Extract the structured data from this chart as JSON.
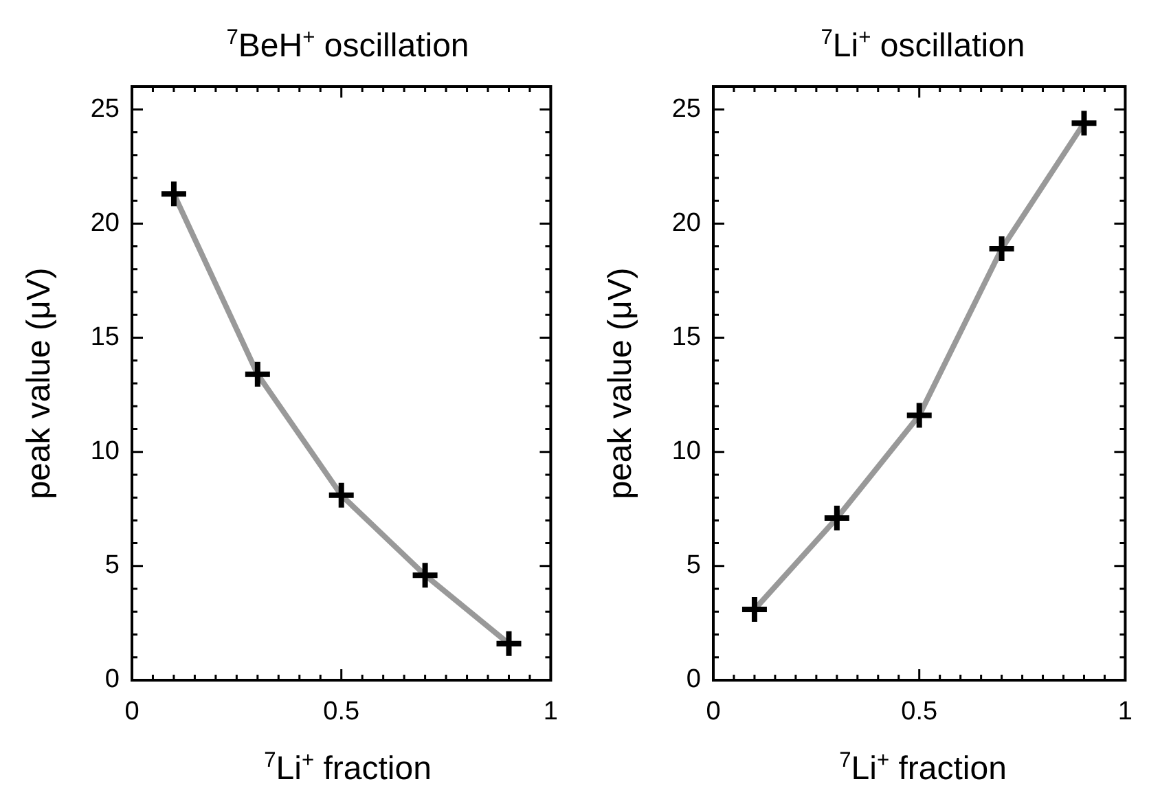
{
  "chart_data": [
    {
      "type": "line",
      "title": "$^{7}$BeH$^{+}$ oscillation",
      "xlabel": "$^{7}$Li$^{+}$ fraction",
      "ylabel": "peak value (μV)",
      "x": [
        0.1,
        0.3,
        0.5,
        0.7,
        0.9
      ],
      "series": [
        {
          "color": "#999999",
          "colors": [
            "#000000",
            "#000000",
            "#000000",
            "#000000",
            "#000000"
          ],
          "values": [
            21.3,
            13.4,
            8.1,
            4.6,
            1.6
          ]
        }
      ],
      "xlim": [
        0,
        1
      ],
      "ylim": [
        0,
        26
      ],
      "xticks": [
        0,
        {
          "value": 0.05,
          "label": null
        },
        {
          "value": 0.1,
          "label": null
        },
        {
          "value": 0.15,
          "label": null
        },
        {
          "value": 0.2,
          "label": null
        },
        {
          "value": 0.25,
          "label": null
        },
        {
          "value": 0.3,
          "label": null
        },
        {
          "value": 0.35,
          "label": null
        },
        {
          "value": 0.4,
          "label": null
        },
        {
          "value": 0.45,
          "label": null
        },
        0.5,
        {
          "value": 0.55,
          "label": null
        },
        {
          "value": 0.6,
          "label": null
        },
        {
          "value": 0.65,
          "label": null
        },
        {
          "value": 0.7,
          "label": null
        },
        {
          "value": 0.75,
          "label": null
        },
        {
          "value": 0.8,
          "label": null
        },
        {
          "value": 0.85,
          "label": null
        },
        {
          "value": 0.9,
          "label": null
        },
        {
          "value": 0.95,
          "label": null
        },
        1
      ],
      "yticks": [
        0,
        {
          "value": 1,
          "label": null
        },
        {
          "value": 2,
          "label": null
        },
        {
          "value": 3,
          "label": null
        },
        {
          "value": 4,
          "label": null
        },
        5,
        {
          "value": 6,
          "label": null
        },
        {
          "value": 7,
          "label": null
        },
        {
          "value": 8,
          "label": null
        },
        {
          "value": 9,
          "label": null
        },
        10,
        {
          "value": 11,
          "label": null
        },
        {
          "value": 12,
          "label": null
        },
        {
          "value": 13,
          "label": null
        },
        {
          "value": 14,
          "label": null
        },
        15,
        {
          "value": 16,
          "label": null
        },
        {
          "value": 17,
          "label": null
        },
        {
          "value": 18,
          "label": null
        },
        {
          "value": 19,
          "label": null
        },
        20,
        {
          "value": 21,
          "label": null
        },
        {
          "value": 22,
          "label": null
        },
        {
          "value": 23,
          "label": null
        },
        {
          "value": 24,
          "label": null
        },
        25
      ],
      "grid": false,
      "legend": false,
      "marker": "cross",
      "line_style": "solid"
    },
    {
      "type": "line",
      "title": "$^{7}$Li$^{+}$ oscillation",
      "xlabel": "$^{7}$Li$^{+}$ fraction",
      "ylabel": "peak value (μV)",
      "x": [
        0.1,
        0.3,
        0.5,
        0.7,
        0.9
      ],
      "series": [
        {
          "color": "#999999",
          "colors": [
            "#000000",
            "#000000",
            "#000000",
            "#000000",
            "#000000"
          ],
          "values": [
            3.1,
            7.1,
            11.6,
            18.9,
            24.4
          ]
        }
      ],
      "xlim": [
        0,
        1
      ],
      "ylim": [
        0,
        26
      ],
      "xticks": [
        0,
        {
          "value": 0.05,
          "label": null
        },
        {
          "value": 0.1,
          "label": null
        },
        {
          "value": 0.15,
          "label": null
        },
        {
          "value": 0.2,
          "label": null
        },
        {
          "value": 0.25,
          "label": null
        },
        {
          "value": 0.3,
          "label": null
        },
        {
          "value": 0.35,
          "label": null
        },
        {
          "value": 0.4,
          "label": null
        },
        {
          "value": 0.45,
          "label": null
        },
        0.5,
        {
          "value": 0.55,
          "label": null
        },
        {
          "value": 0.6,
          "label": null
        },
        {
          "value": 0.65,
          "label": null
        },
        {
          "value": 0.7,
          "label": null
        },
        {
          "value": 0.75,
          "label": null
        },
        {
          "value": 0.8,
          "label": null
        },
        {
          "value": 0.85,
          "label": null
        },
        {
          "value": 0.9,
          "label": null
        },
        {
          "value": 0.95,
          "label": null
        },
        1
      ],
      "yticks": [
        0,
        {
          "value": 1,
          "label": null
        },
        {
          "value": 2,
          "label": null
        },
        {
          "value": 3,
          "label": null
        },
        {
          "value": 4,
          "label": null
        },
        5,
        {
          "value": 6,
          "label": null
        },
        {
          "value": 7,
          "label": null
        },
        {
          "value": 8,
          "label": null
        },
        {
          "value": 9,
          "label": null
        },
        10,
        {
          "value": 11,
          "label": null
        },
        {
          "value": 12,
          "label": null
        },
        {
          "value": 13,
          "label": null
        },
        {
          "value": 14,
          "label": null
        },
        15,
        {
          "value": 16,
          "label": null
        },
        {
          "value": 17,
          "label": null
        },
        {
          "value": 18,
          "label": null
        },
        {
          "value": 19,
          "label": null
        },
        20,
        {
          "value": 21,
          "label": null
        },
        {
          "value": 22,
          "label": null
        },
        {
          "value": 23,
          "label": null
        },
        {
          "value": 24,
          "label": null
        },
        25
      ],
      "grid": false,
      "legend": false,
      "marker": "cross",
      "line_style": "solid"
    }
  ]
}
